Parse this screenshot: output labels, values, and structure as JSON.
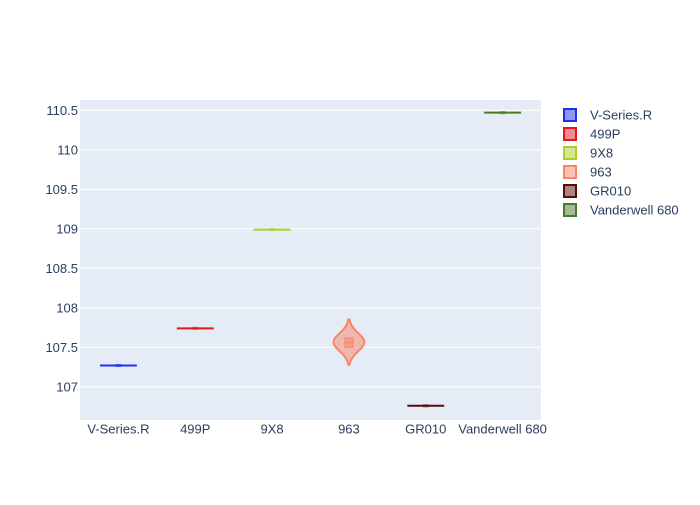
{
  "chart_data": {
    "type": "violin",
    "title": "",
    "xlabel": "",
    "ylabel": "",
    "categories": [
      "V-Series.R",
      "499P",
      "9X8",
      "963",
      "GR010",
      "Vanderwell 680"
    ],
    "ylim": [
      106.58,
      110.63
    ],
    "y_ticks": [
      107,
      107.5,
      108,
      108.5,
      109,
      109.5,
      110,
      110.5
    ],
    "y_tick_labels": [
      "107",
      "107.5",
      "108",
      "108.5",
      "109",
      "109.5",
      "110",
      "110.5"
    ],
    "grid": true,
    "legend_position": "right",
    "series": [
      {
        "name": "V-Series.R",
        "color": "#1f2ff0",
        "values": [
          107.27
        ],
        "median": 107.27,
        "q1": 107.27,
        "q3": 107.27,
        "min": 107.27,
        "max": 107.27
      },
      {
        "name": "499P",
        "color": "#e8161b",
        "values": [
          107.74
        ],
        "median": 107.74,
        "q1": 107.74,
        "q3": 107.74,
        "min": 107.74,
        "max": 107.74
      },
      {
        "name": "9X8",
        "color": "#a7d129",
        "values": [
          108.99
        ],
        "median": 108.99,
        "q1": 108.99,
        "q3": 108.99,
        "min": 108.99,
        "max": 108.99
      },
      {
        "name": "963",
        "color": "#fa8466",
        "values": [
          107.5,
          107.62
        ],
        "median": 107.56,
        "q1": 107.5,
        "q3": 107.62,
        "min": 107.5,
        "max": 107.62,
        "kde_min": 107.28,
        "kde_max": 107.85
      },
      {
        "name": "GR010",
        "color": "#5a0a0a",
        "values": [
          106.76
        ],
        "median": 106.76,
        "q1": 106.76,
        "q3": 106.76,
        "min": 106.76,
        "max": 106.76
      },
      {
        "name": "Vanderwell 680",
        "color": "#4a7a2a",
        "values": [
          110.47
        ],
        "median": 110.47,
        "q1": 110.47,
        "q3": 110.47,
        "min": 110.47,
        "max": 110.47
      }
    ]
  }
}
